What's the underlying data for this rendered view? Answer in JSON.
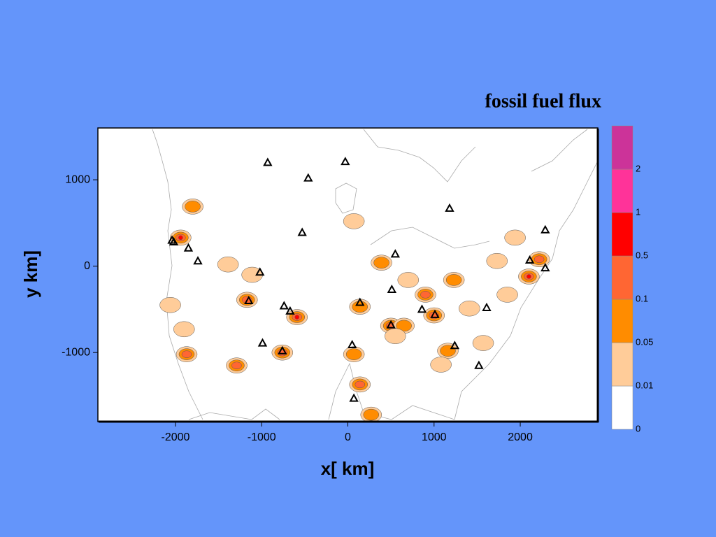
{
  "chart_data": {
    "type": "contour-map",
    "title": "fossil fuel flux",
    "x_label": "x[ km]",
    "y_label": "y km]",
    "xlim": [
      -2900,
      2900
    ],
    "ylim": [
      -1800,
      1600
    ],
    "xticks": [
      -2000,
      -1000,
      0,
      1000,
      2000
    ],
    "yticks": [
      -1000,
      0,
      1000
    ],
    "colorbar": {
      "levels": [
        0,
        0.01,
        0.05,
        0.1,
        0.5,
        1,
        2
      ],
      "colors": [
        "#ffffff",
        "#ffcc99",
        "#ff8c00",
        "#ff6633",
        "#ff0000",
        "#ff3399",
        "#cc3399"
      ]
    },
    "plumes": [
      {
        "x": -1940,
        "y": 330,
        "peak": 0.5
      },
      {
        "x": -1800,
        "y": 690,
        "peak": 0.05
      },
      {
        "x": -2060,
        "y": -450,
        "peak": 0.01
      },
      {
        "x": -1870,
        "y": -1020,
        "peak": 0.1
      },
      {
        "x": -1290,
        "y": -1150,
        "peak": 0.1
      },
      {
        "x": -1900,
        "y": -730,
        "peak": 0.01
      },
      {
        "x": -1110,
        "y": -100,
        "peak": 0.01
      },
      {
        "x": -1170,
        "y": -390,
        "peak": 0.1
      },
      {
        "x": -590,
        "y": -590,
        "peak": 0.5
      },
      {
        "x": -760,
        "y": -1000,
        "peak": 0.1
      },
      {
        "x": 140,
        "y": -470,
        "peak": 0.05
      },
      {
        "x": 70,
        "y": -1020,
        "peak": 0.05
      },
      {
        "x": 140,
        "y": -1370,
        "peak": 0.1
      },
      {
        "x": 270,
        "y": -1720,
        "peak": 0.05
      },
      {
        "x": 70,
        "y": 520,
        "peak": 0.01
      },
      {
        "x": 390,
        "y": 40,
        "peak": 0.05
      },
      {
        "x": 900,
        "y": -330,
        "peak": 0.1
      },
      {
        "x": 700,
        "y": -160,
        "peak": 0.01
      },
      {
        "x": 1000,
        "y": -570,
        "peak": 0.1
      },
      {
        "x": 500,
        "y": -690,
        "peak": 0.1
      },
      {
        "x": 650,
        "y": -690,
        "peak": 0.05
      },
      {
        "x": 1230,
        "y": -160,
        "peak": 0.05
      },
      {
        "x": 1410,
        "y": -490,
        "peak": 0.01
      },
      {
        "x": 1160,
        "y": -980,
        "peak": 0.05
      },
      {
        "x": 1570,
        "y": -890,
        "peak": 0.01
      },
      {
        "x": 1940,
        "y": 330,
        "peak": 0.01
      },
      {
        "x": 2100,
        "y": -120,
        "peak": 0.5
      },
      {
        "x": 2220,
        "y": 80,
        "peak": 0.1
      },
      {
        "x": 1850,
        "y": -330,
        "peak": 0.01
      },
      {
        "x": 1730,
        "y": 60,
        "peak": 0.01
      },
      {
        "x": -1390,
        "y": 20,
        "peak": 0.01
      },
      {
        "x": 1080,
        "y": -1140,
        "peak": 0.01
      },
      {
        "x": 550,
        "y": -810,
        "peak": 0.01
      }
    ],
    "stations": [
      {
        "x": -930,
        "y": 1200
      },
      {
        "x": -30,
        "y": 1210
      },
      {
        "x": -460,
        "y": 1020
      },
      {
        "x": 1180,
        "y": 670
      },
      {
        "x": -530,
        "y": 390
      },
      {
        "x": -2040,
        "y": 300
      },
      {
        "x": -2020,
        "y": 280
      },
      {
        "x": -1850,
        "y": 210
      },
      {
        "x": -1740,
        "y": 60
      },
      {
        "x": -1020,
        "y": -70
      },
      {
        "x": 550,
        "y": 140
      },
      {
        "x": 2290,
        "y": 420
      },
      {
        "x": 2110,
        "y": 70
      },
      {
        "x": 2290,
        "y": -20
      },
      {
        "x": 510,
        "y": -270
      },
      {
        "x": -1150,
        "y": -400
      },
      {
        "x": 140,
        "y": -420
      },
      {
        "x": -740,
        "y": -460
      },
      {
        "x": -670,
        "y": -520
      },
      {
        "x": 860,
        "y": -500
      },
      {
        "x": 1010,
        "y": -560
      },
      {
        "x": 1610,
        "y": -480
      },
      {
        "x": 500,
        "y": -680
      },
      {
        "x": -990,
        "y": -890
      },
      {
        "x": -760,
        "y": -980
      },
      {
        "x": 50,
        "y": -910
      },
      {
        "x": 1240,
        "y": -920
      },
      {
        "x": 1520,
        "y": -1150
      },
      {
        "x": 70,
        "y": -1530
      }
    ]
  }
}
